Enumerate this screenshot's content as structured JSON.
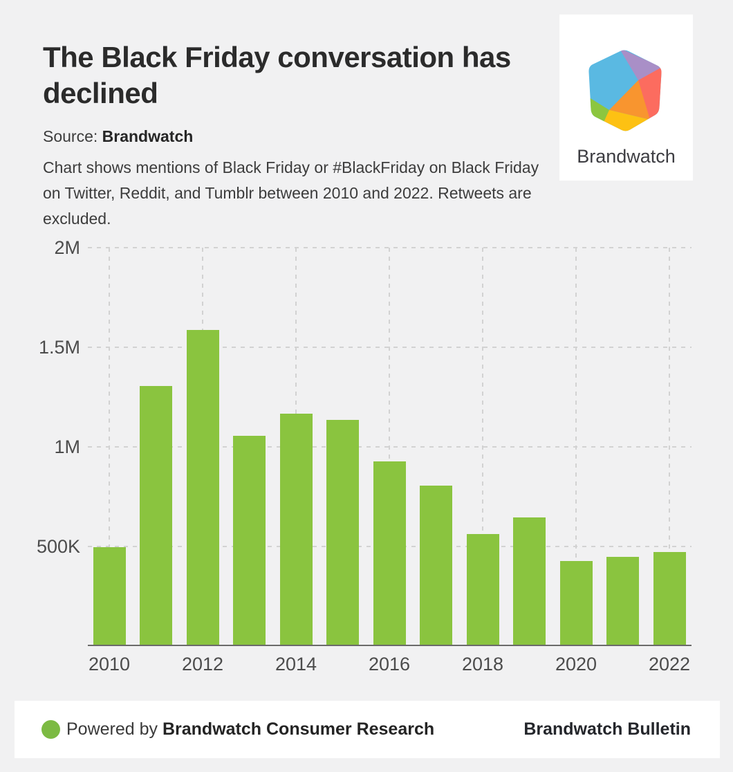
{
  "page": {
    "background": "#f1f1f2"
  },
  "header": {
    "title": "The Black Friday conversation has declined",
    "title_lines": [
      "The Black Friday conversation has",
      "declined"
    ],
    "source_label": "Source: ",
    "source_value": "Brandwatch",
    "description": "Chart shows mentions of Black Friday or #BlackFriday on Black Friday on Twitter, Reddit, and Tumblr between 2010 and 2022. Retweets are excluded.",
    "description_lines": [
      "Chart shows mentions of Black Friday or #BlackFriday on Black Friday",
      "on Twitter, Reddit, and Tumblr between 2010 and 2022. Retweets are",
      "excluded."
    ]
  },
  "logo_card": {
    "brand_name": "Brandwatch",
    "colors": {
      "blue": "#5ab9e2",
      "purple": "#a98fc7",
      "coral": "#fc6c5f",
      "orange": "#f8952f",
      "yellow": "#fdc113",
      "green": "#8cc63f"
    }
  },
  "chart_data": {
    "type": "bar",
    "title": "Mentions of Black Friday or #BlackFriday on Black Friday, 2010-2022",
    "categories": [
      "2010",
      "2011",
      "2012",
      "2013",
      "2014",
      "2015",
      "2016",
      "2017",
      "2018",
      "2019",
      "2020",
      "2021",
      "2022"
    ],
    "values": [
      490000,
      1300000,
      1580000,
      1050000,
      1160000,
      1130000,
      920000,
      800000,
      555000,
      640000,
      420000,
      440000,
      465000
    ],
    "bar_color": "#8ac43f",
    "xlabel": "",
    "ylabel": "",
    "x_tick_labels": [
      "2010",
      "2012",
      "2014",
      "2016",
      "2018",
      "2020",
      "2022"
    ],
    "y_ticks": [
      {
        "label": "2M",
        "value": 2000000
      },
      {
        "label": "1.5M",
        "value": 1500000
      },
      {
        "label": "1M",
        "value": 1000000
      },
      {
        "label": "500K",
        "value": 500000
      }
    ],
    "ylim": [
      0,
      2000000
    ],
    "grid": "dashed",
    "legend": "none"
  },
  "footer": {
    "dot_color": "#7cba43",
    "powered_prefix": "Powered by ",
    "powered_brand": "Brandwatch Consumer Research",
    "right_text": "Brandwatch Bulletin"
  }
}
